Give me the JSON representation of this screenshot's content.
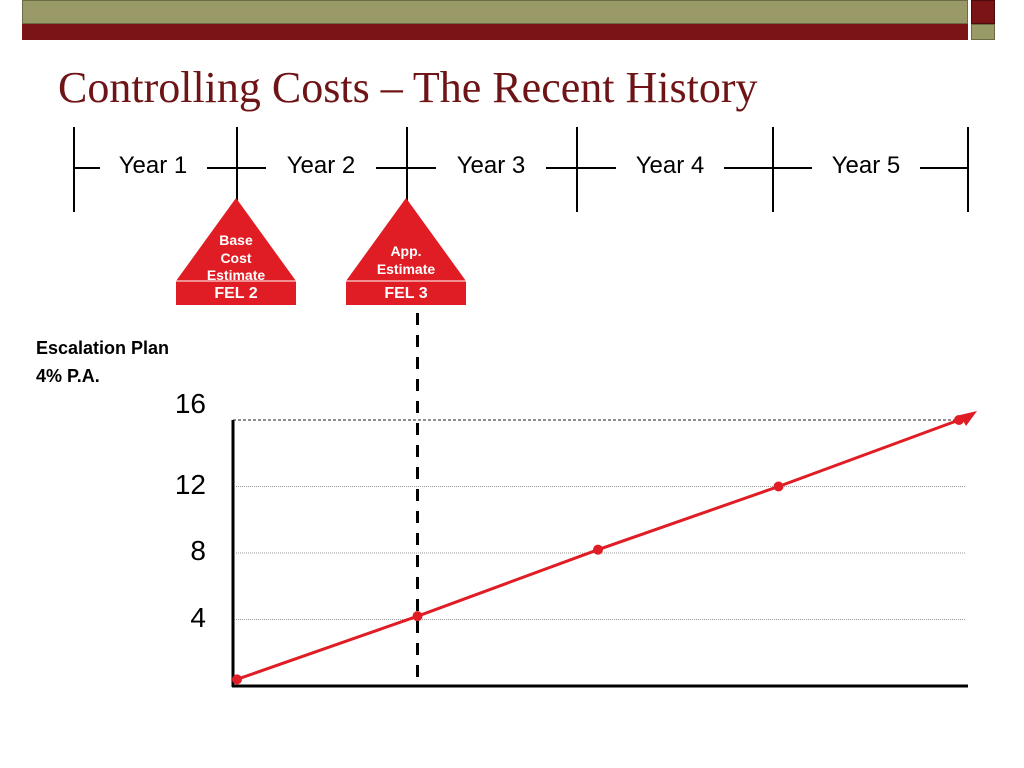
{
  "slide": {
    "title": "Controlling Costs – The Recent History",
    "colors": {
      "title": "#6e1416",
      "bar_red": "#7a1416",
      "bar_olive": "#9a9a68",
      "series": "#e01c24"
    }
  },
  "timeline": {
    "years": [
      "Year 1",
      "Year 2",
      "Year 3",
      "Year 4",
      "Year 5"
    ]
  },
  "markers": [
    {
      "lines": [
        "Base",
        "Cost",
        "Estimate"
      ],
      "fel": "FEL 2"
    },
    {
      "lines": [
        "App.",
        "Estimate"
      ],
      "fel": "FEL 3"
    }
  ],
  "plan": {
    "line1": "Escalation Plan",
    "line2": "4% P.A."
  },
  "chart_data": {
    "type": "line",
    "title": "",
    "xlabel": "",
    "ylabel": "",
    "ylim": [
      0,
      16
    ],
    "y_ticks": [
      "4",
      "8",
      "12",
      "16"
    ],
    "grid": "horizontal dotted",
    "series": [
      {
        "x": [
          0,
          1,
          2,
          3,
          4
        ],
        "values": [
          0.4,
          4.2,
          8.2,
          12.0,
          16.0
        ]
      }
    ],
    "vertical_reference": {
      "x": 1,
      "style": "dashed"
    },
    "color": "#e01c24"
  }
}
